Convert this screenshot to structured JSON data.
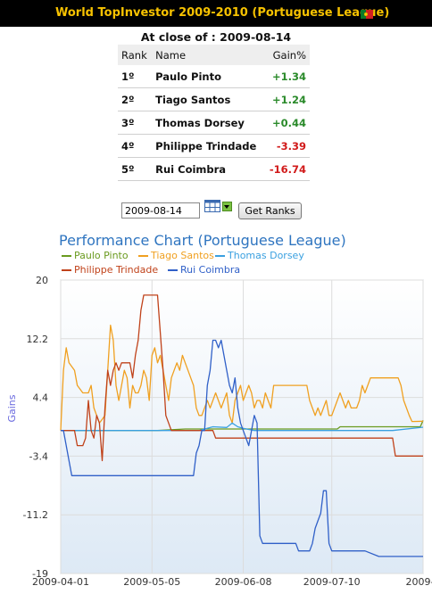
{
  "header": {
    "title": "World TopInvestor 2009-2010 (Portuguese League)"
  },
  "close": {
    "label": "At close of : 2009-08-14"
  },
  "table": {
    "headers": [
      "Rank",
      "Name",
      "Gain%"
    ],
    "rows": [
      {
        "rank": "1º",
        "name": "Paulo Pinto",
        "gain": "+1.34"
      },
      {
        "rank": "2º",
        "name": "Tiago Santos",
        "gain": "+1.24"
      },
      {
        "rank": "3º",
        "name": "Thomas Dorsey",
        "gain": "+0.44"
      },
      {
        "rank": "4º",
        "name": "Philippe Trindade",
        "gain": "-3.39"
      },
      {
        "rank": "5º",
        "name": "Rui Coimbra",
        "gain": "-16.74"
      }
    ]
  },
  "controls": {
    "date_value": "2009-08-14",
    "button_label": "Get Ranks",
    "calendar_icon": "calendar-icon"
  },
  "colors": {
    "positive": "#2a8a2a",
    "negative": "#d11a1a",
    "title": "#f7c200",
    "chart_title": "#2f75c0"
  },
  "chart_data": {
    "type": "line",
    "title": "Performance Chart (Portuguese League)",
    "ylabel": "Gains",
    "xlabel": "",
    "ylim": [
      -19,
      20
    ],
    "yticks": [
      "20",
      "12.2",
      "4.4",
      "-3.4",
      "-11.2",
      "-19"
    ],
    "xticks": [
      "2009-04-01",
      "2009-05-05",
      "2009-06-08",
      "2009-07-10",
      "2009-0"
    ],
    "grid": true,
    "legend": "top-left",
    "series": [
      {
        "name": "Paulo Pinto",
        "color": "#6a9a1f",
        "points": [
          [
            0,
            0
          ],
          [
            35,
            0
          ],
          [
            45,
            0.2
          ],
          [
            60,
            0.2
          ],
          [
            80,
            0.2
          ],
          [
            100,
            0.2
          ],
          [
            101,
            0.5
          ],
          [
            112,
            0.5
          ],
          [
            130,
            0.5
          ],
          [
            131,
            1.34
          ]
        ]
      },
      {
        "name": "Tiago Santos",
        "color": "#f0a020",
        "points": [
          [
            0,
            0
          ],
          [
            1,
            8
          ],
          [
            2,
            11
          ],
          [
            3,
            9
          ],
          [
            5,
            8
          ],
          [
            6,
            6
          ],
          [
            8,
            5
          ],
          [
            9,
            5
          ],
          [
            10,
            5
          ],
          [
            11,
            6
          ],
          [
            12,
            3
          ],
          [
            13,
            2
          ],
          [
            14,
            1
          ],
          [
            15,
            1.5
          ],
          [
            16,
            2
          ],
          [
            17,
            8
          ],
          [
            18,
            14
          ],
          [
            19,
            12
          ],
          [
            20,
            6
          ],
          [
            21,
            4
          ],
          [
            22,
            6
          ],
          [
            23,
            8
          ],
          [
            24,
            7
          ],
          [
            25,
            3
          ],
          [
            26,
            6
          ],
          [
            27,
            5
          ],
          [
            28,
            5
          ],
          [
            29,
            6
          ],
          [
            30,
            8
          ],
          [
            31,
            7
          ],
          [
            32,
            4
          ],
          [
            33,
            10
          ],
          [
            34,
            11
          ],
          [
            35,
            9
          ],
          [
            36,
            10
          ],
          [
            37,
            8
          ],
          [
            38,
            6
          ],
          [
            39,
            4
          ],
          [
            40,
            7
          ],
          [
            41,
            8
          ],
          [
            42,
            9
          ],
          [
            43,
            8
          ],
          [
            44,
            10
          ],
          [
            45,
            9
          ],
          [
            46,
            8
          ],
          [
            47,
            7
          ],
          [
            48,
            6
          ],
          [
            49,
            3
          ],
          [
            50,
            2
          ],
          [
            51,
            2
          ],
          [
            52,
            3
          ],
          [
            53,
            4
          ],
          [
            54,
            3
          ],
          [
            55,
            4
          ],
          [
            56,
            5
          ],
          [
            57,
            4
          ],
          [
            58,
            3
          ],
          [
            59,
            4
          ],
          [
            60,
            5
          ],
          [
            61,
            2
          ],
          [
            62,
            1
          ],
          [
            63,
            4
          ],
          [
            64,
            5
          ],
          [
            65,
            6
          ],
          [
            66,
            4
          ],
          [
            67,
            5
          ],
          [
            68,
            6
          ],
          [
            69,
            5
          ],
          [
            70,
            3
          ],
          [
            71,
            4
          ],
          [
            72,
            4
          ],
          [
            73,
            3
          ],
          [
            74,
            5
          ],
          [
            75,
            4
          ],
          [
            76,
            3
          ],
          [
            77,
            6
          ],
          [
            78,
            6
          ],
          [
            80,
            6
          ],
          [
            81,
            6
          ],
          [
            82,
            6
          ],
          [
            85,
            6
          ],
          [
            86,
            6
          ],
          [
            89,
            6
          ],
          [
            90,
            4
          ],
          [
            91,
            3
          ],
          [
            92,
            2
          ],
          [
            93,
            3
          ],
          [
            94,
            2
          ],
          [
            95,
            3
          ],
          [
            96,
            4
          ],
          [
            97,
            2
          ],
          [
            98,
            2
          ],
          [
            99,
            3
          ],
          [
            100,
            4
          ],
          [
            101,
            5
          ],
          [
            102,
            4
          ],
          [
            103,
            3
          ],
          [
            104,
            4
          ],
          [
            105,
            3
          ],
          [
            106,
            3
          ],
          [
            107,
            3
          ],
          [
            108,
            4
          ],
          [
            109,
            6
          ],
          [
            110,
            5
          ],
          [
            111,
            6
          ],
          [
            112,
            7
          ],
          [
            113,
            7
          ],
          [
            115,
            7
          ],
          [
            116,
            7
          ],
          [
            118,
            7
          ],
          [
            119,
            7
          ],
          [
            120,
            7
          ],
          [
            121,
            7
          ],
          [
            122,
            7
          ],
          [
            123,
            6
          ],
          [
            124,
            4
          ],
          [
            125,
            3
          ],
          [
            126,
            2
          ],
          [
            127,
            1.2
          ],
          [
            131,
            1.24
          ]
        ]
      },
      {
        "name": "Thomas Dorsey",
        "color": "#3aa0e0",
        "points": [
          [
            0,
            0
          ],
          [
            20,
            0
          ],
          [
            40,
            0
          ],
          [
            50,
            0
          ],
          [
            55,
            0.5
          ],
          [
            60,
            0.4
          ],
          [
            62,
            1
          ],
          [
            64,
            0.5
          ],
          [
            66,
            0.3
          ],
          [
            70,
            0
          ],
          [
            80,
            0
          ],
          [
            90,
            0
          ],
          [
            100,
            0
          ],
          [
            110,
            0
          ],
          [
            120,
            0
          ],
          [
            131,
            0.44
          ]
        ]
      },
      {
        "name": "Philippe Trindade",
        "color": "#c0421a",
        "points": [
          [
            0,
            0
          ],
          [
            5,
            0
          ],
          [
            6,
            -2
          ],
          [
            7,
            -2
          ],
          [
            8,
            -2
          ],
          [
            9,
            -1
          ],
          [
            10,
            4
          ],
          [
            11,
            0
          ],
          [
            12,
            -1
          ],
          [
            13,
            2
          ],
          [
            14,
            1
          ],
          [
            15,
            -4
          ],
          [
            16,
            3
          ],
          [
            17,
            8
          ],
          [
            18,
            6
          ],
          [
            19,
            8
          ],
          [
            20,
            9
          ],
          [
            21,
            8
          ],
          [
            22,
            9
          ],
          [
            23,
            9
          ],
          [
            24,
            9
          ],
          [
            25,
            9
          ],
          [
            26,
            7
          ],
          [
            27,
            10
          ],
          [
            28,
            12
          ],
          [
            29,
            16
          ],
          [
            30,
            18
          ],
          [
            31,
            18
          ],
          [
            32,
            18
          ],
          [
            33,
            18
          ],
          [
            34,
            18
          ],
          [
            35,
            18
          ],
          [
            36,
            13
          ],
          [
            37,
            8
          ],
          [
            38,
            2
          ],
          [
            39,
            1
          ],
          [
            40,
            0
          ],
          [
            45,
            0
          ],
          [
            46,
            0
          ],
          [
            55,
            0
          ],
          [
            56,
            -1
          ],
          [
            60,
            -1
          ],
          [
            61,
            -1
          ],
          [
            70,
            -1
          ],
          [
            80,
            -1
          ],
          [
            90,
            -1
          ],
          [
            100,
            -1
          ],
          [
            110,
            -1
          ],
          [
            120,
            -1
          ],
          [
            121,
            -3.39
          ],
          [
            131,
            -3.39
          ]
        ]
      },
      {
        "name": "Rui Coimbra",
        "color": "#3060c8",
        "points": [
          [
            0,
            0
          ],
          [
            1,
            0
          ],
          [
            2,
            -2
          ],
          [
            3,
            -4
          ],
          [
            4,
            -6
          ],
          [
            5,
            -6
          ],
          [
            20,
            -6
          ],
          [
            40,
            -6
          ],
          [
            48,
            -6
          ],
          [
            49,
            -3
          ],
          [
            50,
            -2
          ],
          [
            51,
            0
          ],
          [
            52,
            0
          ],
          [
            53,
            6
          ],
          [
            54,
            8
          ],
          [
            55,
            12
          ],
          [
            56,
            12
          ],
          [
            57,
            11
          ],
          [
            58,
            12
          ],
          [
            59,
            10
          ],
          [
            60,
            8
          ],
          [
            61,
            6
          ],
          [
            62,
            5
          ],
          [
            63,
            7
          ],
          [
            64,
            3
          ],
          [
            65,
            1
          ],
          [
            66,
            0
          ],
          [
            67,
            -1
          ],
          [
            68,
            -2
          ],
          [
            69,
            0
          ],
          [
            70,
            2
          ],
          [
            71,
            1
          ],
          [
            72,
            -14
          ],
          [
            73,
            -15
          ],
          [
            80,
            -15
          ],
          [
            85,
            -15
          ],
          [
            86,
            -16
          ],
          [
            90,
            -16
          ],
          [
            91,
            -15
          ],
          [
            92,
            -13
          ],
          [
            93,
            -12
          ],
          [
            94,
            -11
          ],
          [
            95,
            -8
          ],
          [
            96,
            -8
          ],
          [
            97,
            -15
          ],
          [
            98,
            -16
          ],
          [
            99,
            -16
          ],
          [
            105,
            -16
          ],
          [
            110,
            -16
          ],
          [
            115,
            -16.74
          ],
          [
            131,
            -16.74
          ]
        ]
      }
    ]
  }
}
